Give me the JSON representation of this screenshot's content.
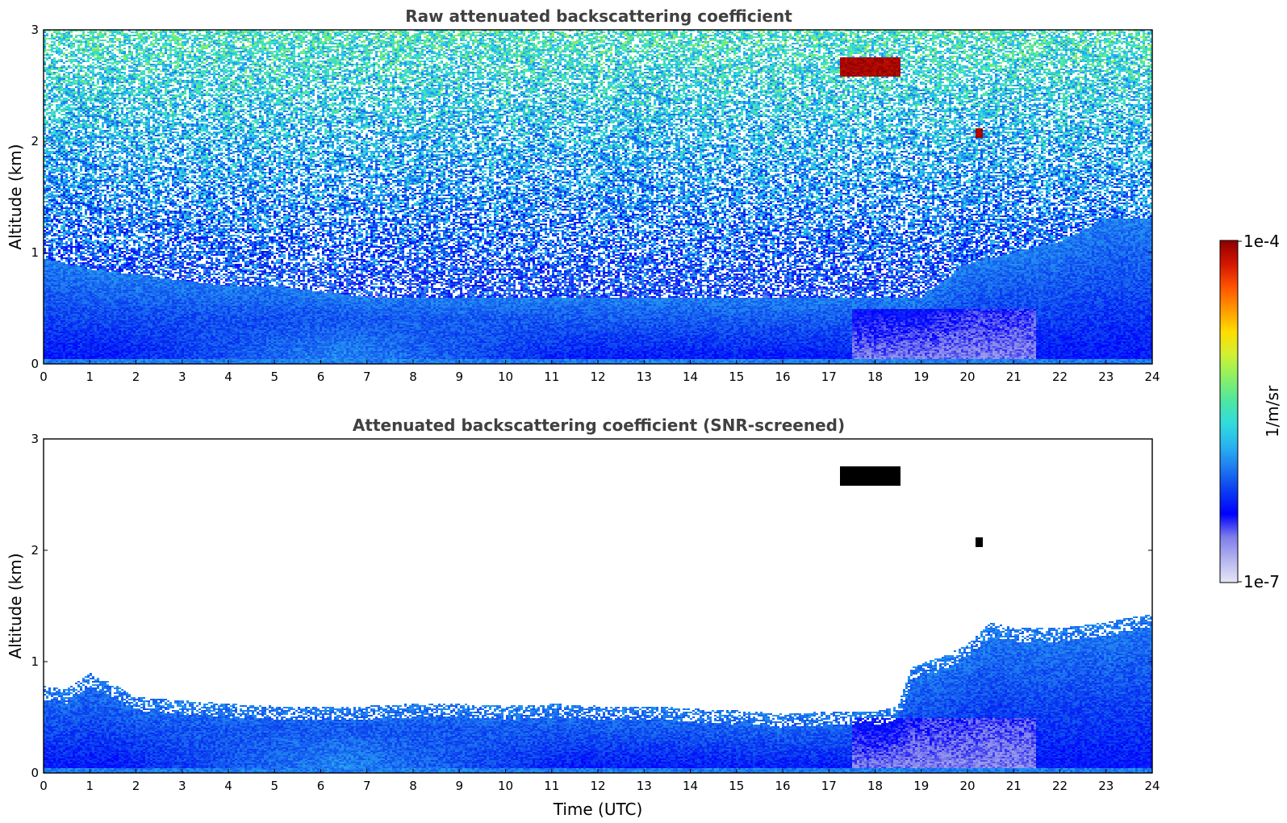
{
  "chart_data": [
    {
      "type": "heatmap",
      "title": "Raw attenuated backscattering coefficient",
      "xlabel": "",
      "ylabel": "Altitude (km)",
      "xlim": [
        0,
        24
      ],
      "ylim": [
        0,
        3
      ],
      "x_ticks": [
        "0",
        "1",
        "2",
        "3",
        "4",
        "5",
        "6",
        "7",
        "8",
        "9",
        "10",
        "11",
        "12",
        "13",
        "14",
        "15",
        "16",
        "17",
        "18",
        "19",
        "20",
        "21",
        "22",
        "23",
        "24"
      ],
      "y_ticks": [
        "0",
        "1",
        "2",
        "3"
      ],
      "screened": false,
      "boundary_layer_top_km": [
        [
          0,
          0.95
        ],
        [
          1,
          0.85
        ],
        [
          2,
          0.8
        ],
        [
          3,
          0.75
        ],
        [
          4,
          0.7
        ],
        [
          5,
          0.7
        ],
        [
          6,
          0.65
        ],
        [
          7,
          0.6
        ],
        [
          8,
          0.6
        ],
        [
          9,
          0.6
        ],
        [
          10,
          0.6
        ],
        [
          11,
          0.6
        ],
        [
          12,
          0.6
        ],
        [
          13,
          0.6
        ],
        [
          14,
          0.6
        ],
        [
          15,
          0.6
        ],
        [
          16,
          0.6
        ],
        [
          17,
          0.6
        ],
        [
          18,
          0.6
        ],
        [
          19,
          0.6
        ],
        [
          20,
          0.9
        ],
        [
          21,
          1.0
        ],
        [
          22,
          1.1
        ],
        [
          23,
          1.3
        ],
        [
          24,
          1.3
        ]
      ],
      "features": [
        {
          "type": "cloud",
          "t_start": 17.25,
          "t_end": 18.55,
          "alt_bottom_km": 2.58,
          "alt_top_km": 2.76,
          "value": "1e-4"
        },
        {
          "type": "cloud",
          "t_start": 20.2,
          "t_end": 20.35,
          "alt_bottom_km": 2.03,
          "alt_top_km": 2.12,
          "value": "1e-4"
        }
      ]
    },
    {
      "type": "heatmap",
      "title": "Attenuated backscattering coefficient (SNR-screened)",
      "xlabel": "Time (UTC)",
      "ylabel": "Altitude (km)",
      "xlim": [
        0,
        24
      ],
      "ylim": [
        0,
        3
      ],
      "x_ticks": [
        "0",
        "1",
        "2",
        "3",
        "4",
        "5",
        "6",
        "7",
        "8",
        "9",
        "10",
        "11",
        "12",
        "13",
        "14",
        "15",
        "16",
        "17",
        "18",
        "19",
        "20",
        "21",
        "22",
        "23",
        "24"
      ],
      "y_ticks": [
        "0",
        "1",
        "2",
        "3"
      ],
      "screened": true,
      "boundary_layer_top_km": [
        [
          0,
          0.78
        ],
        [
          0.5,
          0.75
        ],
        [
          1,
          0.9
        ],
        [
          1.5,
          0.8
        ],
        [
          2,
          0.68
        ],
        [
          3,
          0.65
        ],
        [
          4,
          0.62
        ],
        [
          5,
          0.6
        ],
        [
          6,
          0.6
        ],
        [
          7,
          0.6
        ],
        [
          8,
          0.62
        ],
        [
          9,
          0.62
        ],
        [
          10,
          0.6
        ],
        [
          11,
          0.62
        ],
        [
          12,
          0.6
        ],
        [
          13,
          0.6
        ],
        [
          14,
          0.58
        ],
        [
          15,
          0.56
        ],
        [
          16,
          0.53
        ],
        [
          17,
          0.55
        ],
        [
          18,
          0.55
        ],
        [
          18.5,
          0.6
        ],
        [
          18.8,
          0.95
        ],
        [
          19.5,
          1.05
        ],
        [
          20,
          1.15
        ],
        [
          20.5,
          1.35
        ],
        [
          21,
          1.3
        ],
        [
          22,
          1.3
        ],
        [
          23,
          1.35
        ],
        [
          23.8,
          1.42
        ],
        [
          24,
          1.42
        ]
      ],
      "features": [
        {
          "type": "cloud",
          "t_start": 17.25,
          "t_end": 18.55,
          "alt_bottom_km": 2.58,
          "alt_top_km": 2.76,
          "value": "saturated"
        },
        {
          "type": "cloud",
          "t_start": 20.2,
          "t_end": 20.35,
          "alt_bottom_km": 2.03,
          "alt_top_km": 2.12,
          "value": "saturated"
        }
      ]
    }
  ],
  "colorbar": {
    "label": "1/m/sr",
    "min_label": "1e-7",
    "max_label": "1e-4",
    "scale": "log",
    "colormap": [
      "#e6e6f5",
      "#b4b4ef",
      "#7d7dea",
      "#0000ff",
      "#0a3cf0",
      "#1e78f0",
      "#28b4f0",
      "#32dcdc",
      "#50e6a0",
      "#8cf064",
      "#d2f032",
      "#ffdc00",
      "#ff9600",
      "#ff5000",
      "#d21400",
      "#8c0000"
    ]
  }
}
